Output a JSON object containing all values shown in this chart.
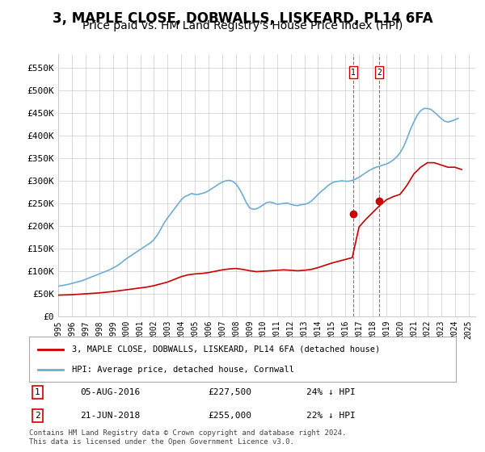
{
  "title": "3, MAPLE CLOSE, DOBWALLS, LISKEARD, PL14 6FA",
  "subtitle": "Price paid vs. HM Land Registry's House Price Index (HPI)",
  "title_fontsize": 12,
  "subtitle_fontsize": 10,
  "ylabel_ticks": [
    "£0",
    "£50K",
    "£100K",
    "£150K",
    "£200K",
    "£250K",
    "£300K",
    "£350K",
    "£400K",
    "£450K",
    "£500K",
    "£550K"
  ],
  "ytick_values": [
    0,
    50000,
    100000,
    150000,
    200000,
    250000,
    300000,
    350000,
    400000,
    450000,
    500000,
    550000
  ],
  "ylim": [
    0,
    580000
  ],
  "hpi_color": "#6baed6",
  "price_color": "#cc0000",
  "grid_color": "#cccccc",
  "bg_color": "#ffffff",
  "legend_label_red": "3, MAPLE CLOSE, DOBWALLS, LISKEARD, PL14 6FA (detached house)",
  "legend_label_blue": "HPI: Average price, detached house, Cornwall",
  "transaction1_date": "05-AUG-2016",
  "transaction1_price": "£227,500",
  "transaction1_info": "24% ↓ HPI",
  "transaction2_date": "21-JUN-2018",
  "transaction2_price": "£255,000",
  "transaction2_info": "22% ↓ HPI",
  "footnote": "Contains HM Land Registry data © Crown copyright and database right 2024.\nThis data is licensed under the Open Government Licence v3.0.",
  "t1_x_year": 2016.58,
  "t1_price": 227500,
  "t2_x_year": 2018.47,
  "t2_price": 255000,
  "hpi_years": [
    1995,
    1995.25,
    1995.5,
    1995.75,
    1996,
    1996.25,
    1996.5,
    1996.75,
    1997,
    1997.25,
    1997.5,
    1997.75,
    1998,
    1998.25,
    1998.5,
    1998.75,
    1999,
    1999.25,
    1999.5,
    1999.75,
    2000,
    2000.25,
    2000.5,
    2000.75,
    2001,
    2001.25,
    2001.5,
    2001.75,
    2002,
    2002.25,
    2002.5,
    2002.75,
    2003,
    2003.25,
    2003.5,
    2003.75,
    2004,
    2004.25,
    2004.5,
    2004.75,
    2005,
    2005.25,
    2005.5,
    2005.75,
    2006,
    2006.25,
    2006.5,
    2006.75,
    2007,
    2007.25,
    2007.5,
    2007.75,
    2008,
    2008.25,
    2008.5,
    2008.75,
    2009,
    2009.25,
    2009.5,
    2009.75,
    2010,
    2010.25,
    2010.5,
    2010.75,
    2011,
    2011.25,
    2011.5,
    2011.75,
    2012,
    2012.25,
    2012.5,
    2012.75,
    2013,
    2013.25,
    2013.5,
    2013.75,
    2014,
    2014.25,
    2014.5,
    2014.75,
    2015,
    2015.25,
    2015.5,
    2015.75,
    2016,
    2016.25,
    2016.5,
    2016.75,
    2017,
    2017.25,
    2017.5,
    2017.75,
    2018,
    2018.25,
    2018.5,
    2018.75,
    2019,
    2019.25,
    2019.5,
    2019.75,
    2020,
    2020.25,
    2020.5,
    2020.75,
    2021,
    2021.25,
    2021.5,
    2021.75,
    2022,
    2022.25,
    2022.5,
    2022.75,
    2023,
    2023.25,
    2023.5,
    2023.75,
    2024,
    2024.25
  ],
  "hpi_values": [
    67000,
    68000,
    69500,
    71000,
    73000,
    75000,
    77000,
    79000,
    82000,
    85000,
    88000,
    91000,
    94000,
    97000,
    100000,
    103000,
    107000,
    111000,
    116000,
    122000,
    128000,
    133000,
    138000,
    143000,
    148000,
    153000,
    158000,
    163000,
    170000,
    180000,
    193000,
    207000,
    218000,
    228000,
    238000,
    248000,
    258000,
    265000,
    268000,
    272000,
    270000,
    270000,
    272000,
    274000,
    278000,
    283000,
    288000,
    293000,
    297000,
    300000,
    301000,
    299000,
    293000,
    282000,
    268000,
    252000,
    240000,
    237000,
    238000,
    242000,
    247000,
    252000,
    253000,
    251000,
    248000,
    249000,
    250000,
    251000,
    248000,
    246000,
    245000,
    247000,
    248000,
    250000,
    255000,
    262000,
    270000,
    277000,
    283000,
    290000,
    295000,
    298000,
    299000,
    300000,
    299000,
    299000,
    301000,
    304000,
    308000,
    313000,
    318000,
    323000,
    327000,
    330000,
    332000,
    335000,
    337000,
    341000,
    346000,
    353000,
    362000,
    375000,
    393000,
    413000,
    430000,
    445000,
    455000,
    460000,
    460000,
    458000,
    452000,
    445000,
    438000,
    432000,
    430000,
    432000,
    435000,
    438000
  ],
  "price_years": [
    1995,
    1995.5,
    1996,
    1996.5,
    1997,
    1997.5,
    1998,
    1998.5,
    1999,
    1999.5,
    2000,
    2000.5,
    2001,
    2001.5,
    2002,
    2002.5,
    2003,
    2003.5,
    2004,
    2004.5,
    2005,
    2005.5,
    2006,
    2006.5,
    2007,
    2007.5,
    2008,
    2008.5,
    2009,
    2009.5,
    2010,
    2010.5,
    2011,
    2011.5,
    2012,
    2012.5,
    2013,
    2013.5,
    2014,
    2014.5,
    2015,
    2015.5,
    2016,
    2016.5,
    2017,
    2017.5,
    2018,
    2018.5,
    2019,
    2019.5,
    2020,
    2020.5,
    2021,
    2021.5,
    2022,
    2022.5,
    2023,
    2023.5,
    2024,
    2024.5
  ],
  "price_values": [
    47000,
    47500,
    48000,
    49000,
    50000,
    51000,
    52000,
    53500,
    55000,
    57000,
    59000,
    61000,
    63000,
    65000,
    68000,
    72000,
    76000,
    82000,
    88000,
    92000,
    94000,
    95000,
    97000,
    100000,
    103000,
    105000,
    106000,
    104000,
    101000,
    99000,
    100000,
    101000,
    102000,
    103000,
    102000,
    101000,
    102000,
    104000,
    108000,
    113000,
    118000,
    122000,
    126000,
    130000,
    198000,
    215000,
    230000,
    245000,
    258000,
    265000,
    270000,
    290000,
    315000,
    330000,
    340000,
    340000,
    335000,
    330000,
    330000,
    325000
  ],
  "xtick_years": [
    1995,
    1996,
    1997,
    1998,
    1999,
    2000,
    2001,
    2002,
    2003,
    2004,
    2005,
    2006,
    2007,
    2008,
    2009,
    2010,
    2011,
    2012,
    2013,
    2014,
    2015,
    2016,
    2017,
    2018,
    2019,
    2020,
    2021,
    2022,
    2023,
    2024,
    2025
  ],
  "xlim": [
    1995,
    2025.5
  ]
}
